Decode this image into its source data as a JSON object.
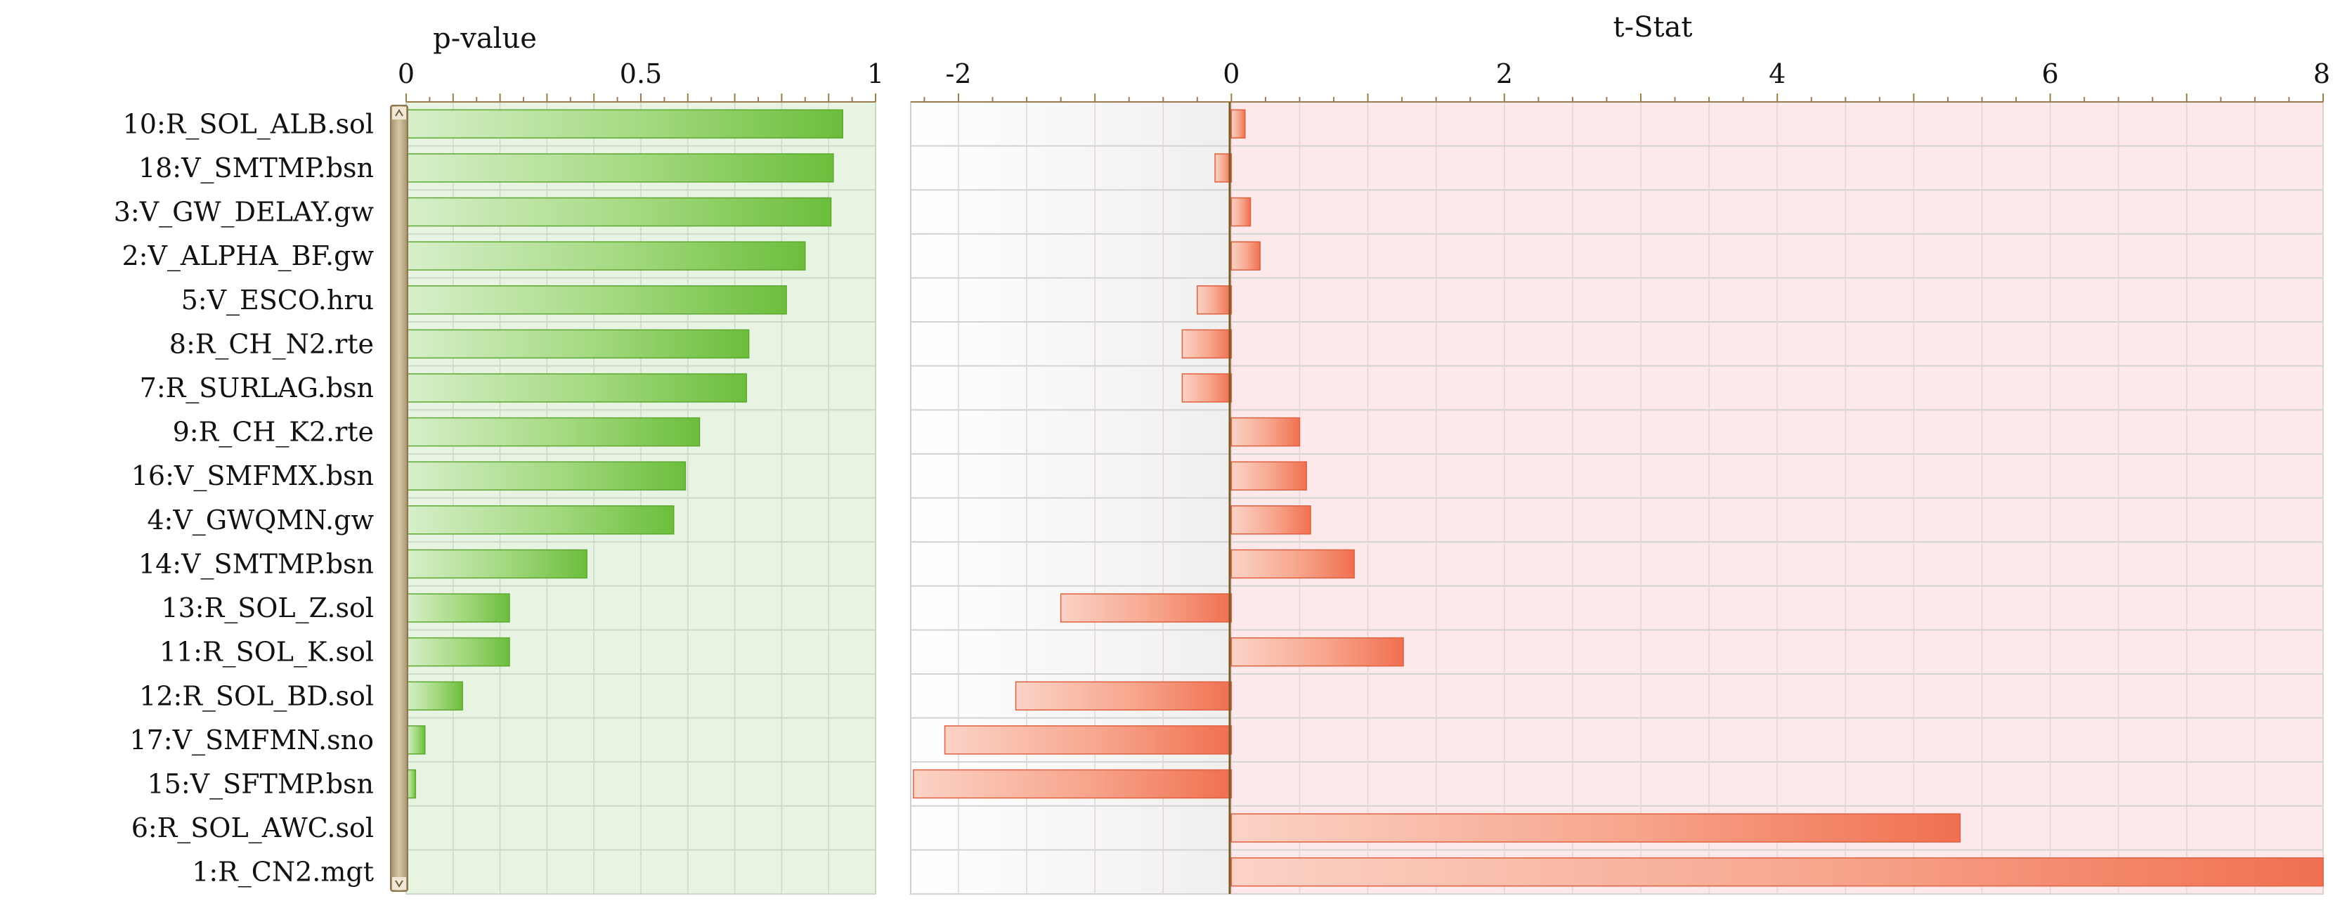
{
  "colors": {
    "pval_bg": "#e7f4e2",
    "pval_bar": "#7cc64f",
    "tstat_bg_right": "#fde9e9",
    "tstat_bar": "#f4876a",
    "grid": "#c9cfc9",
    "tick": "#9c7b4f",
    "zero_line": "#7a5a2b",
    "scrollbar": "#b9a98a"
  },
  "chart_data": [
    {
      "type": "bar",
      "orientation": "horizontal",
      "title": "p-value",
      "xlim": [
        0,
        1
      ],
      "ticks": [
        0,
        0.5,
        1
      ],
      "tick_labels": [
        "0",
        "0.5",
        "1"
      ],
      "categories": [
        "10:R_SOL_ALB.sol",
        "18:V_SMTMP.bsn",
        "3:V_GW_DELAY.gw",
        "2:V_ALPHA_BF.gw",
        "5:V_ESCO.hru",
        "8:R_CH_N2.rte",
        "7:R_SURLAG.bsn",
        "9:R_CH_K2.rte",
        "16:V_SMFMX.bsn",
        "4:V_GWQMN.gw",
        "14:V_SMTMP.bsn",
        "13:R_SOL_Z.sol",
        "11:R_SOL_K.sol",
        "12:R_SOL_BD.sol",
        "17:V_SMFMN.sno",
        "15:V_SFTMP.bsn",
        "6:R_SOL_AWC.sol",
        "1:R_CN2.mgt"
      ],
      "values": [
        0.93,
        0.91,
        0.905,
        0.85,
        0.81,
        0.73,
        0.725,
        0.625,
        0.595,
        0.57,
        0.385,
        0.22,
        0.22,
        0.12,
        0.04,
        0.02,
        0.0,
        0.0
      ]
    },
    {
      "type": "bar",
      "orientation": "horizontal",
      "title": "t-Stat",
      "xlim": [
        -2.35,
        8
      ],
      "ticks": [
        -2,
        0,
        2,
        4,
        6,
        8
      ],
      "tick_labels": [
        "-2",
        "0",
        "2",
        "4",
        "6",
        "8"
      ],
      "categories": [
        "10:R_SOL_ALB.sol",
        "18:V_SMTMP.bsn",
        "3:V_GW_DELAY.gw",
        "2:V_ALPHA_BF.gw",
        "5:V_ESCO.hru",
        "8:R_CH_N2.rte",
        "7:R_SURLAG.bsn",
        "9:R_CH_K2.rte",
        "16:V_SMFMX.bsn",
        "4:V_GWQMN.gw",
        "14:V_SMTMP.bsn",
        "13:R_SOL_Z.sol",
        "11:R_SOL_K.sol",
        "12:R_SOL_BD.sol",
        "17:V_SMFMN.sno",
        "15:V_SFTMP.bsn",
        "6:R_SOL_AWC.sol",
        "1:R_CN2.mgt"
      ],
      "values": [
        0.1,
        -0.12,
        0.14,
        0.21,
        -0.25,
        -0.36,
        -0.36,
        0.5,
        0.55,
        0.58,
        0.9,
        -1.25,
        1.26,
        -1.58,
        -2.1,
        -2.33,
        5.34,
        8.0
      ]
    }
  ]
}
